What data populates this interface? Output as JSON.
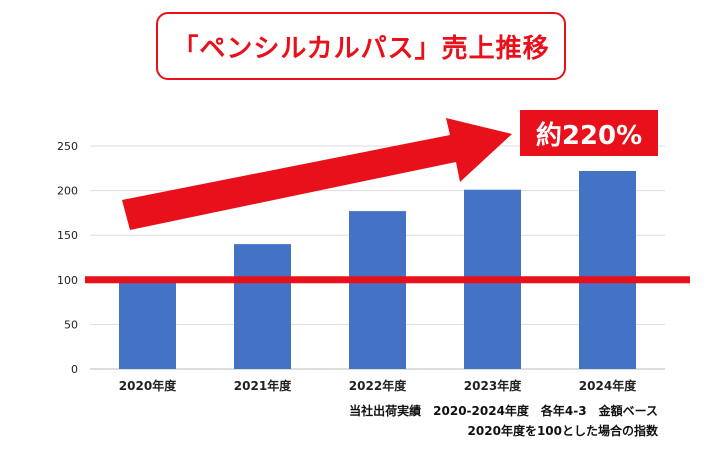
{
  "title": "「ペンシルカルパス」売上推移",
  "callout": "約220%",
  "notes": {
    "line1": "当社出荷実績　2020-2024年度　各年4-3　金額ベース",
    "line2": "2020年度を100とした場合の指数"
  },
  "colors": {
    "bar": "#4472c4",
    "accent": "#e8101a"
  },
  "chart_data": {
    "type": "bar",
    "categories": [
      "2020年度",
      "2021年度",
      "2022年度",
      "2023年度",
      "2024年度"
    ],
    "values": [
      100,
      140,
      177,
      201,
      222
    ],
    "ylim": [
      0,
      250
    ],
    "yticks": [
      0,
      50,
      100,
      150,
      200,
      250
    ],
    "reference_line": 100,
    "grid": true,
    "legend": "none"
  }
}
